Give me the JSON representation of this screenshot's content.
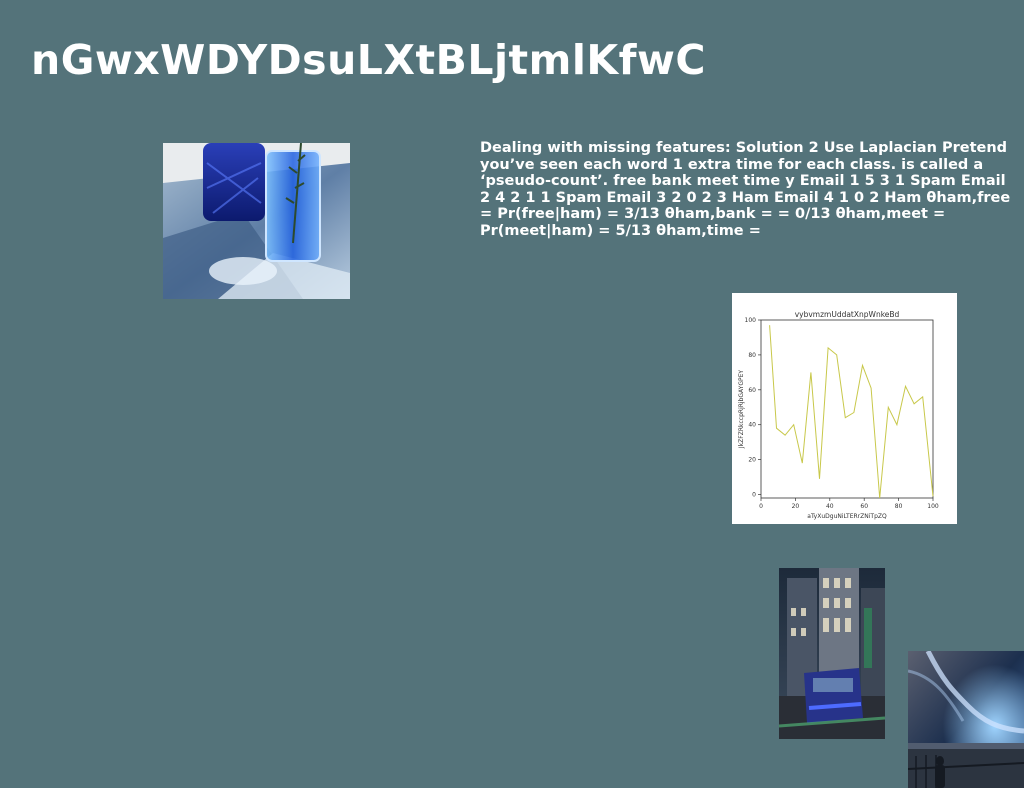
{
  "slide": {
    "title": "nGwxWDYDsuLXtBLjtmlKfwC",
    "body": "Dealing with missing features: Solution 2 Use Laplacian Pretend you’ve seen each word 1 extra time for each class. is called a ‘pseudo-count’. free bank meet time y Email 1 5 3 1 Spam Email 2 4 2 1 1 Spam Email 3 2 0 2 3 Ham Email 4 1 0 2 Ham θham,free = Pr(free|ham) = 3/13 θham,bank = = 0/13 θham,meet = Pr(meet|ham) = 5/13 θham,time ="
  },
  "colors": {
    "background": "#54737a",
    "text": "#ffffff",
    "series_line": "#c8c84a"
  },
  "chart_data": {
    "type": "line",
    "title": "vybvmzmUddatXnpWnkeBd",
    "xlabel": "aTyXuDguNiLTERrZNiTpZQ",
    "ylabel": "JkZFZRkccpRjRjbGAYGPEY",
    "xlim": [
      0,
      100
    ],
    "ylim": [
      -2,
      100
    ],
    "x_ticks": [
      0,
      20,
      40,
      60,
      80,
      100
    ],
    "y_ticks": [
      0,
      20,
      40,
      60,
      80,
      100
    ],
    "grid": false,
    "series": [
      {
        "x": [
          5,
          9,
          14,
          19,
          24,
          29,
          34,
          39,
          44,
          49,
          54,
          59,
          64,
          69,
          74,
          79,
          84,
          89,
          94,
          100
        ],
        "values": [
          97,
          38,
          34,
          40,
          18,
          70,
          9,
          84,
          80,
          44,
          47,
          74,
          61,
          -2,
          50,
          40,
          62,
          52,
          56,
          -1
        ]
      }
    ]
  }
}
